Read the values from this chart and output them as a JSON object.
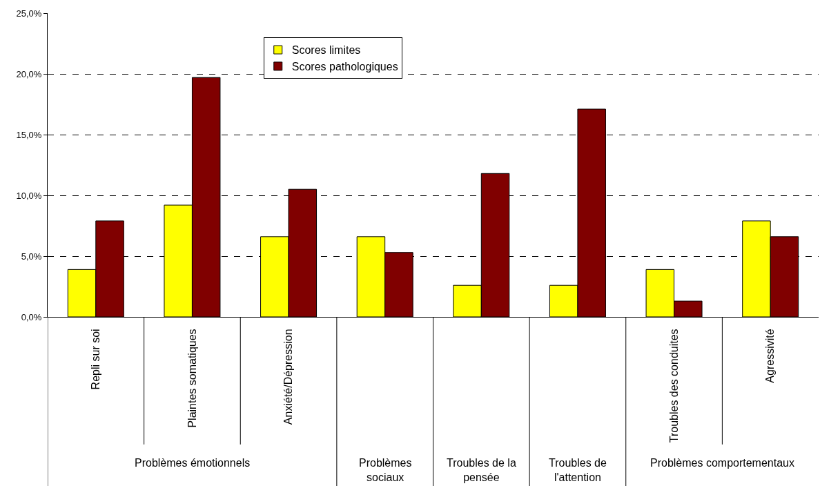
{
  "chart_data": {
    "type": "bar",
    "categories": [
      "Repli sur soi",
      "Plaintes somatiques",
      "Anxiété/Dépression",
      null,
      null,
      null,
      "Troubles des conduites",
      "Agressivité"
    ],
    "series": [
      {
        "name": "Scores limites",
        "color": "#ffff00",
        "values": [
          3.9,
          9.2,
          6.6,
          6.6,
          2.6,
          2.6,
          3.9,
          7.9
        ]
      },
      {
        "name": "Scores pathologiques",
        "color": "#800000",
        "values": [
          7.9,
          19.7,
          10.5,
          5.3,
          11.8,
          17.1,
          1.3,
          6.6
        ]
      }
    ],
    "ylim": [
      0,
      25
    ],
    "yticks": [
      {
        "value": 0,
        "label": "0,0%"
      },
      {
        "value": 5,
        "label": "5,0%"
      },
      {
        "value": 10,
        "label": "10,0%"
      },
      {
        "value": 15,
        "label": "15,0%"
      },
      {
        "value": 20,
        "label": "20,0%"
      },
      {
        "value": 25,
        "label": "25,0%"
      }
    ],
    "grid": "y",
    "legend": "top",
    "annotations": [
      "Problèmes émotionnels",
      "Problèmes sociaux",
      "Troubles de la pensée",
      "Troubles de l'attention",
      "Problèmes comportementaux"
    ]
  }
}
